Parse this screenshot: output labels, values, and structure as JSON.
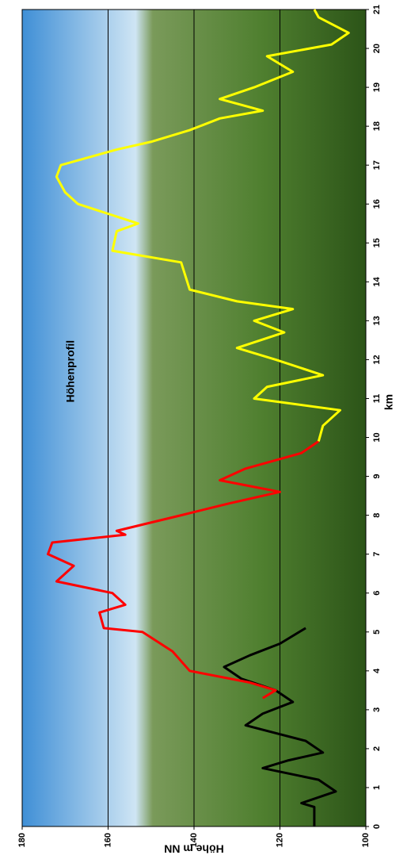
{
  "chart_data": {
    "type": "line",
    "title": "Höhenprofil",
    "x_label": "km",
    "y_label": "Höhe m NN",
    "xlim": [
      0,
      21
    ],
    "xticks": [
      0,
      1,
      2,
      3,
      4,
      5,
      6,
      7,
      8,
      9,
      10,
      11,
      12,
      13,
      14,
      15,
      16,
      17,
      18,
      19,
      20,
      21
    ],
    "ylim": [
      100,
      180
    ],
    "yticks": [
      100,
      120,
      140,
      160,
      180
    ],
    "grid": true,
    "series": [
      {
        "color": "#000000",
        "x": [
          0,
          0.5,
          0.6,
          0.9,
          1.2,
          1.5,
          1.7,
          1.9,
          2.2,
          2.6,
          2.9,
          3.2,
          3.5,
          3.8,
          4.1,
          4.4,
          4.7,
          5.1
        ],
        "values": [
          112,
          112,
          115,
          107,
          111,
          124,
          118,
          110,
          114,
          128,
          124,
          117,
          121,
          129,
          133,
          127,
          120,
          114
        ]
      },
      {
        "color": "#ff0000",
        "x": [
          3.3,
          3.5,
          3.7,
          4.0,
          4.5,
          5.0,
          5.1,
          5.5,
          5.7,
          6.0,
          6.3,
          6.7,
          7.0,
          7.3,
          7.5,
          7.6,
          8.0,
          8.3,
          8.6,
          8.9,
          9.2,
          9.6,
          9.9
        ],
        "values": [
          124,
          121,
          127,
          141,
          145,
          152,
          161,
          162,
          156,
          159,
          172,
          168,
          174,
          173,
          156,
          158,
          143,
          132,
          120,
          134,
          128,
          115,
          111
        ]
      },
      {
        "color": "#ffff00",
        "x": [
          9.9,
          10.3,
          10.7,
          11.0,
          11.3,
          11.6,
          12.0,
          12.3,
          12.7,
          13.0,
          13.3,
          13.5,
          13.8,
          14.5,
          14.8,
          15.3,
          15.5,
          16.0,
          16.3,
          16.7,
          17.0,
          17.4,
          17.6,
          17.9,
          18.2,
          18.4,
          18.7,
          19.0,
          19.4,
          19.8,
          20.1,
          20.4,
          20.8,
          21.0
        ],
        "values": [
          111,
          110,
          106,
          126,
          123,
          110,
          121,
          130,
          119,
          126,
          117,
          130,
          141,
          143,
          159,
          158,
          153,
          167,
          170,
          172,
          171,
          158,
          150,
          141,
          134,
          124,
          134,
          126,
          117,
          123,
          108,
          104,
          111,
          112
        ]
      }
    ]
  }
}
